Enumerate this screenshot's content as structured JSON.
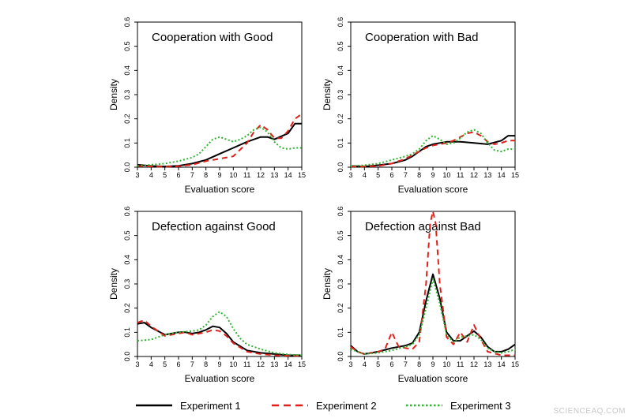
{
  "chart_data": [
    {
      "type": "line",
      "title": "Cooperation with Good",
      "xlabel": "Evaluation score",
      "ylabel": "Density",
      "xlim": [
        3,
        15
      ],
      "ylim": [
        0,
        0.6
      ],
      "x_ticks": [
        3,
        4,
        5,
        6,
        7,
        8,
        9,
        10,
        11,
        12,
        13,
        14,
        15
      ],
      "y_ticks": [
        0.0,
        0.1,
        0.2,
        0.3,
        0.4,
        0.5,
        0.6
      ],
      "grid": false,
      "series": [
        {
          "name": "Experiment 1",
          "x": [
            3,
            4,
            5,
            6,
            7,
            8,
            9,
            10,
            11,
            12,
            12.5,
            13,
            14,
            14.5,
            15
          ],
          "y": [
            0.01,
            0.005,
            0.003,
            0.006,
            0.015,
            0.03,
            0.055,
            0.08,
            0.105,
            0.125,
            0.125,
            0.115,
            0.14,
            0.18,
            0.18
          ]
        },
        {
          "name": "Experiment 2",
          "x": [
            3,
            4,
            5,
            6,
            7,
            8,
            9,
            10,
            11,
            11.5,
            12,
            12.5,
            13,
            13.5,
            14,
            14.5,
            15
          ],
          "y": [
            0.005,
            0.003,
            0.002,
            0.004,
            0.01,
            0.025,
            0.035,
            0.045,
            0.1,
            0.145,
            0.175,
            0.155,
            0.12,
            0.12,
            0.15,
            0.2,
            0.22
          ]
        },
        {
          "name": "Experiment 3",
          "x": [
            3,
            4,
            5,
            6,
            7,
            7.5,
            8,
            8.5,
            9,
            9.5,
            10,
            10.5,
            11,
            11.5,
            12,
            12.5,
            13,
            13.5,
            14,
            14.5,
            15
          ],
          "y": [
            0.005,
            0.01,
            0.015,
            0.025,
            0.04,
            0.055,
            0.085,
            0.115,
            0.125,
            0.115,
            0.105,
            0.115,
            0.13,
            0.155,
            0.165,
            0.145,
            0.105,
            0.08,
            0.075,
            0.08,
            0.08
          ]
        }
      ]
    },
    {
      "type": "line",
      "title": "Cooperation with Bad",
      "xlabel": "Evaluation score",
      "ylabel": "Density",
      "xlim": [
        3,
        15
      ],
      "ylim": [
        0,
        0.6
      ],
      "x_ticks": [
        3,
        4,
        5,
        6,
        7,
        8,
        9,
        10,
        11,
        12,
        13,
        14,
        15
      ],
      "y_ticks": [
        0.0,
        0.1,
        0.2,
        0.3,
        0.4,
        0.5,
        0.6
      ],
      "grid": false,
      "series": [
        {
          "name": "Experiment 1",
          "x": [
            3,
            4,
            5,
            6,
            7,
            7.5,
            8,
            8.5,
            9,
            9.5,
            10,
            11,
            12,
            13,
            14,
            14.5,
            15
          ],
          "y": [
            0.005,
            0.003,
            0.008,
            0.015,
            0.03,
            0.045,
            0.065,
            0.085,
            0.095,
            0.1,
            0.105,
            0.105,
            0.1,
            0.095,
            0.11,
            0.13,
            0.13
          ]
        },
        {
          "name": "Experiment 2",
          "x": [
            3,
            4,
            5,
            6,
            7,
            7.5,
            8,
            8.5,
            9,
            9.5,
            10,
            10.5,
            11,
            11.5,
            12,
            12.5,
            13,
            13.5,
            14,
            14.5,
            15
          ],
          "y": [
            0.003,
            0.003,
            0.005,
            0.015,
            0.035,
            0.05,
            0.065,
            0.08,
            0.09,
            0.095,
            0.1,
            0.11,
            0.125,
            0.14,
            0.145,
            0.13,
            0.105,
            0.095,
            0.1,
            0.11,
            0.11
          ]
        },
        {
          "name": "Experiment 3",
          "x": [
            3,
            4,
            5,
            6,
            7,
            7.5,
            8,
            8.5,
            9,
            9.5,
            10,
            10.5,
            11,
            11.5,
            12,
            12.5,
            13,
            13.5,
            14,
            14.5,
            15
          ],
          "y": [
            0.005,
            0.008,
            0.015,
            0.03,
            0.045,
            0.055,
            0.075,
            0.11,
            0.13,
            0.115,
            0.095,
            0.1,
            0.12,
            0.145,
            0.155,
            0.14,
            0.1,
            0.07,
            0.065,
            0.075,
            0.075
          ]
        }
      ]
    },
    {
      "type": "line",
      "title": "Defection against Good",
      "xlabel": "Evaluation score",
      "ylabel": "Density",
      "xlim": [
        3,
        15
      ],
      "ylim": [
        0,
        0.6
      ],
      "x_ticks": [
        3,
        4,
        5,
        6,
        7,
        8,
        9,
        10,
        11,
        12,
        13,
        14,
        15
      ],
      "y_ticks": [
        0.0,
        0.1,
        0.2,
        0.3,
        0.4,
        0.5,
        0.6
      ],
      "grid": false,
      "series": [
        {
          "name": "Experiment 1",
          "x": [
            3,
            3.5,
            4,
            5,
            6,
            6.5,
            7,
            7.5,
            8,
            8.5,
            9,
            9.5,
            10,
            11,
            12,
            13,
            14,
            15
          ],
          "y": [
            0.135,
            0.14,
            0.12,
            0.09,
            0.1,
            0.1,
            0.095,
            0.1,
            0.11,
            0.125,
            0.12,
            0.095,
            0.06,
            0.025,
            0.015,
            0.01,
            0.005,
            0.005
          ]
        },
        {
          "name": "Experiment 2",
          "x": [
            3,
            3.5,
            4,
            5,
            6,
            6.5,
            7,
            7.5,
            8,
            8.5,
            9,
            9.5,
            10,
            11,
            12,
            13,
            14,
            15
          ],
          "y": [
            0.14,
            0.15,
            0.125,
            0.085,
            0.095,
            0.1,
            0.09,
            0.095,
            0.1,
            0.11,
            0.105,
            0.085,
            0.055,
            0.02,
            0.01,
            0.005,
            0.003,
            0.003
          ]
        },
        {
          "name": "Experiment 3",
          "x": [
            3,
            4,
            5,
            6,
            7,
            7.5,
            8,
            8.5,
            9,
            9.5,
            10,
            10.5,
            11,
            12,
            13,
            14,
            15
          ],
          "y": [
            0.065,
            0.07,
            0.09,
            0.1,
            0.105,
            0.11,
            0.13,
            0.165,
            0.185,
            0.165,
            0.115,
            0.075,
            0.05,
            0.03,
            0.015,
            0.008,
            0.005
          ]
        }
      ]
    },
    {
      "type": "line",
      "title": "Defection against Bad",
      "xlabel": "Evaluation score",
      "ylabel": "Density",
      "xlim": [
        3,
        15
      ],
      "ylim": [
        0,
        0.6
      ],
      "x_ticks": [
        3,
        4,
        5,
        6,
        7,
        8,
        9,
        10,
        11,
        12,
        13,
        14,
        15
      ],
      "y_ticks": [
        0.0,
        0.1,
        0.2,
        0.3,
        0.4,
        0.5,
        0.6
      ],
      "grid": false,
      "series": [
        {
          "name": "Experiment 1",
          "x": [
            3,
            3.5,
            4,
            5,
            6,
            7,
            7.5,
            8,
            8.5,
            9,
            9.5,
            10,
            10.5,
            11,
            11.5,
            12,
            12.5,
            13,
            13.5,
            14,
            14.5,
            15
          ],
          "y": [
            0.045,
            0.02,
            0.01,
            0.02,
            0.035,
            0.045,
            0.055,
            0.1,
            0.23,
            0.34,
            0.24,
            0.1,
            0.065,
            0.065,
            0.085,
            0.105,
            0.08,
            0.04,
            0.02,
            0.02,
            0.03,
            0.05
          ]
        },
        {
          "name": "Experiment 2",
          "x": [
            3,
            3.5,
            4,
            5,
            5.5,
            6,
            6.5,
            7,
            7.5,
            8,
            8.5,
            8.8,
            9,
            9.2,
            9.5,
            10,
            10.5,
            11,
            11.5,
            12,
            12.5,
            13,
            14,
            15
          ],
          "y": [
            0.04,
            0.02,
            0.01,
            0.02,
            0.03,
            0.1,
            0.04,
            0.035,
            0.03,
            0.06,
            0.3,
            0.55,
            0.6,
            0.55,
            0.3,
            0.08,
            0.05,
            0.1,
            0.06,
            0.13,
            0.07,
            0.02,
            0.005,
            0.005
          ]
        },
        {
          "name": "Experiment 3",
          "x": [
            3,
            4,
            5,
            6,
            7,
            7.5,
            8,
            8.5,
            9,
            9.5,
            10,
            10.5,
            11,
            11.5,
            12,
            12.5,
            13,
            13.5,
            14,
            14.5,
            15
          ],
          "y": [
            0.03,
            0.01,
            0.015,
            0.025,
            0.04,
            0.05,
            0.09,
            0.2,
            0.32,
            0.22,
            0.09,
            0.06,
            0.08,
            0.085,
            0.09,
            0.07,
            0.035,
            0.02,
            0.015,
            0.02,
            0.03
          ]
        }
      ]
    }
  ],
  "legend": {
    "position": "bottom",
    "items": [
      {
        "label": "Experiment 1",
        "color": "#000000",
        "style": "solid"
      },
      {
        "label": "Experiment 2",
        "color": "#e0201b",
        "style": "dashed"
      },
      {
        "label": "Experiment 3",
        "color": "#2fb52f",
        "style": "dotted"
      }
    ]
  },
  "watermark": "SCIENCEAQ.COM"
}
